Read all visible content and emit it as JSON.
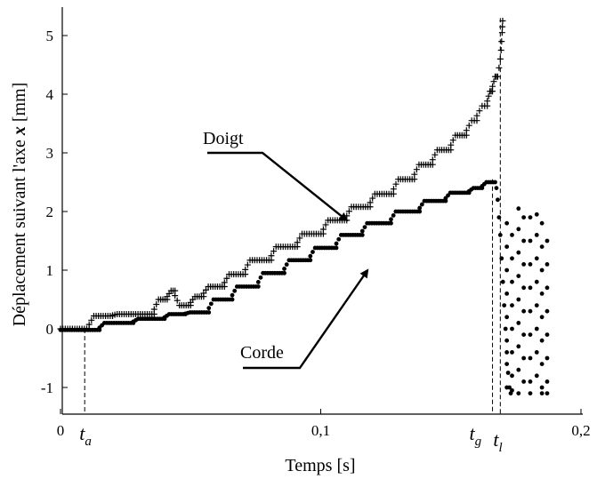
{
  "chart_data": {
    "type": "scatter",
    "title": "",
    "xlabel": "Temps [s]",
    "ylabel": "Déplacement suivant l'axe ",
    "ylabel_var": "x",
    "ylabel_unit": " [mm]",
    "xlim": [
      0,
      0.2
    ],
    "ylim": [
      -1.5,
      5.5
    ],
    "x_ticks": [
      0,
      0.1,
      0.2
    ],
    "x_tick_labels": [
      "0",
      "0,1",
      "0,2"
    ],
    "y_ticks": [
      -1,
      0,
      1,
      2,
      3,
      4,
      5
    ],
    "y_tick_labels": [
      "-1",
      "0",
      "1",
      "2",
      "3",
      "4",
      "5"
    ],
    "grid": false,
    "legend": "none",
    "annotations": [
      {
        "text": "Doigt",
        "arrow_to": [
          0.11,
          1.85
        ]
      },
      {
        "text": "Corde",
        "arrow_to": [
          0.118,
          1.0
        ]
      }
    ],
    "time_markers": [
      {
        "main": "t",
        "sub": "a",
        "x": 0.0093
      },
      {
        "main": "t",
        "sub": "g",
        "x": 0.166
      },
      {
        "main": "t",
        "sub": "l",
        "x": 0.169
      }
    ],
    "series": [
      {
        "name": "Doigt",
        "marker": "plus",
        "color": "#000000",
        "steps": [
          [
            0.0,
            0.011,
            0.0
          ],
          [
            0.011,
            0.02,
            0.22
          ],
          [
            0.02,
            0.036,
            0.25
          ],
          [
            0.036,
            0.041,
            0.5
          ],
          [
            0.041,
            0.044,
            0.65
          ],
          [
            0.044,
            0.05,
            0.4
          ],
          [
            0.05,
            0.055,
            0.55
          ],
          [
            0.055,
            0.063,
            0.72
          ],
          [
            0.063,
            0.071,
            0.93
          ],
          [
            0.071,
            0.081,
            1.17
          ],
          [
            0.081,
            0.091,
            1.4
          ],
          [
            0.091,
            0.101,
            1.62
          ],
          [
            0.101,
            0.11,
            1.85
          ],
          [
            0.11,
            0.119,
            2.08
          ],
          [
            0.119,
            0.128,
            2.3
          ],
          [
            0.128,
            0.136,
            2.55
          ],
          [
            0.136,
            0.143,
            2.8
          ],
          [
            0.143,
            0.15,
            3.05
          ],
          [
            0.15,
            0.156,
            3.3
          ],
          [
            0.156,
            0.16,
            3.55
          ],
          [
            0.16,
            0.164,
            3.8
          ],
          [
            0.164,
            0.166,
            4.05
          ],
          [
            0.166,
            0.168,
            4.3
          ]
        ],
        "tail": {
          "x": [
            0.1685,
            0.169,
            0.1693,
            0.1695,
            0.1697,
            0.1698,
            0.1699
          ],
          "y": [
            4.45,
            4.6,
            4.75,
            4.9,
            5.05,
            5.15,
            5.25
          ]
        }
      },
      {
        "name": "Corde",
        "marker": "dot",
        "color": "#000000",
        "steps": [
          [
            0.0,
            0.015,
            -0.02
          ],
          [
            0.015,
            0.028,
            0.1
          ],
          [
            0.028,
            0.04,
            0.17
          ],
          [
            0.04,
            0.048,
            0.25
          ],
          [
            0.048,
            0.057,
            0.28
          ],
          [
            0.057,
            0.066,
            0.5
          ],
          [
            0.066,
            0.076,
            0.72
          ],
          [
            0.076,
            0.086,
            0.95
          ],
          [
            0.086,
            0.096,
            1.17
          ],
          [
            0.096,
            0.106,
            1.38
          ],
          [
            0.106,
            0.116,
            1.6
          ],
          [
            0.116,
            0.127,
            1.8
          ],
          [
            0.127,
            0.138,
            2.0
          ],
          [
            0.138,
            0.148,
            2.18
          ],
          [
            0.148,
            0.157,
            2.32
          ],
          [
            0.157,
            0.162,
            2.4
          ],
          [
            0.162,
            0.167,
            2.5
          ]
        ],
        "tail": {
          "x": [
            0.1675,
            0.168,
            0.1685,
            0.169,
            0.1695,
            0.17,
            0.1705,
            0.171,
            0.1715,
            0.172,
            0.1725,
            0.173
          ],
          "y": [
            2.4,
            2.2,
            1.9,
            1.6,
            1.2,
            0.8,
            0.4,
            0.0,
            -0.4,
            -0.75,
            -1.0,
            -1.1
          ]
        },
        "oscillation": [
          {
            "x": 0.1715,
            "y": [
              1.8,
              1.4,
              1.0,
              0.6,
              0.2,
              -0.2,
              -0.6,
              -1.0
            ]
          },
          {
            "x": 0.1735,
            "y": [
              1.6,
              1.2,
              0.8,
              0.4,
              0.0,
              -0.4,
              -0.8,
              -1.05
            ]
          },
          {
            "x": 0.176,
            "y": [
              2.05,
              1.7,
              1.3,
              0.9,
              0.5,
              0.1,
              -0.3,
              -0.7,
              -1.1
            ]
          },
          {
            "x": 0.178,
            "y": [
              1.9,
              1.5,
              1.1,
              0.7,
              0.3,
              -0.1,
              -0.5,
              -0.9
            ]
          },
          {
            "x": 0.1805,
            "y": [
              1.9,
              1.5,
              1.1,
              0.7,
              0.3,
              -0.1,
              -0.5,
              -0.9,
              -1.1
            ]
          },
          {
            "x": 0.183,
            "y": [
              1.95,
              1.6,
              1.2,
              0.8,
              0.4,
              0.0,
              -0.4,
              -0.8
            ]
          },
          {
            "x": 0.185,
            "y": [
              1.8,
              1.4,
              1.0,
              0.6,
              0.2,
              -0.2,
              -0.6,
              -1.0,
              -1.1
            ]
          },
          {
            "x": 0.187,
            "y": [
              1.5,
              1.1,
              0.7,
              0.3,
              -0.1,
              -0.5,
              -0.9,
              -1.1
            ]
          }
        ]
      }
    ]
  }
}
